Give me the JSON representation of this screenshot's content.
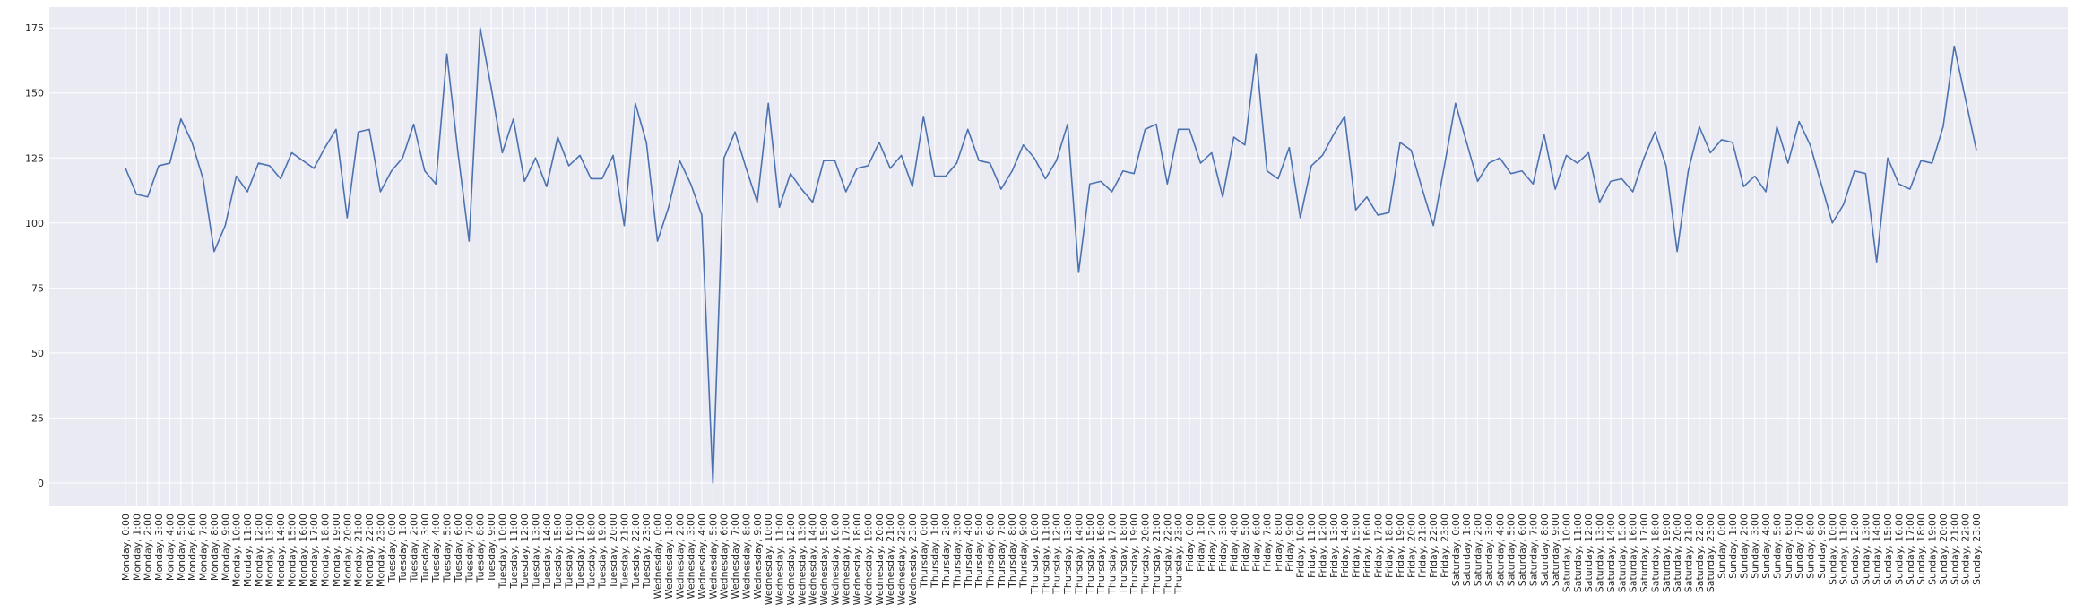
{
  "chart_data": {
    "type": "line",
    "title": "",
    "xlabel": "",
    "ylabel": "",
    "ylim": [
      -9,
      183
    ],
    "grid": true,
    "legend": "none",
    "background_color": "#eaeaf2",
    "grid_color": "#ffffff",
    "yticks": [
      0,
      25,
      50,
      75,
      100,
      125,
      150,
      175
    ],
    "series": [
      {
        "color": "#4c72b0",
        "values": [
          121,
          111,
          110,
          122,
          123,
          140,
          131,
          117,
          89,
          99,
          118,
          112,
          123,
          122,
          117,
          127,
          124,
          121,
          129,
          136,
          102,
          135,
          136,
          112,
          120,
          125,
          138,
          120,
          115,
          165,
          127,
          93,
          175,
          152,
          127,
          140,
          116,
          125,
          114,
          133,
          122,
          126,
          117,
          117,
          126,
          99,
          146,
          131,
          93,
          106,
          124,
          115,
          103,
          0,
          125,
          135,
          121,
          108,
          146,
          106,
          119,
          113,
          108,
          124,
          124,
          112,
          121,
          122,
          131,
          121,
          126,
          114,
          141,
          118,
          118,
          123,
          136,
          124,
          123,
          113,
          120,
          130,
          125,
          117,
          124,
          138,
          81,
          115,
          116,
          112,
          120,
          119,
          136,
          138,
          115,
          136,
          136,
          123,
          127,
          110,
          133,
          130,
          165,
          120,
          117,
          129,
          102,
          122,
          126,
          134,
          141,
          105,
          110,
          103,
          104,
          131,
          128,
          113,
          99,
          122,
          146,
          131,
          116,
          123,
          125,
          119,
          120,
          115,
          134,
          113,
          126,
          123,
          127,
          108,
          116,
          117,
          112,
          125,
          135,
          122,
          89,
          120,
          137,
          127,
          132,
          131,
          114,
          118,
          112,
          137,
          123,
          139,
          130,
          115,
          100,
          107,
          120,
          119,
          85,
          125,
          115,
          113,
          124,
          123,
          137,
          168,
          148,
          128
        ]
      }
    ],
    "x": [
      "Monday, 0:00",
      "Monday, 1:00",
      "Monday, 2:00",
      "Monday, 3:00",
      "Monday, 4:00",
      "Monday, 5:00",
      "Monday, 6:00",
      "Monday, 7:00",
      "Monday, 8:00",
      "Monday, 9:00",
      "Monday, 10:00",
      "Monday, 11:00",
      "Monday, 12:00",
      "Monday, 13:00",
      "Monday, 14:00",
      "Monday, 15:00",
      "Monday, 16:00",
      "Monday, 17:00",
      "Monday, 18:00",
      "Monday, 19:00",
      "Monday, 20:00",
      "Monday, 21:00",
      "Monday, 22:00",
      "Monday, 23:00",
      "Tuesday, 0:00",
      "Tuesday, 1:00",
      "Tuesday, 2:00",
      "Tuesday, 3:00",
      "Tuesday, 4:00",
      "Tuesday, 5:00",
      "Tuesday, 6:00",
      "Tuesday, 7:00",
      "Tuesday, 8:00",
      "Tuesday, 9:00",
      "Tuesday, 10:00",
      "Tuesday, 11:00",
      "Tuesday, 12:00",
      "Tuesday, 13:00",
      "Tuesday, 14:00",
      "Tuesday, 15:00",
      "Tuesday, 16:00",
      "Tuesday, 17:00",
      "Tuesday, 18:00",
      "Tuesday, 19:00",
      "Tuesday, 20:00",
      "Tuesday, 21:00",
      "Tuesday, 22:00",
      "Tuesday, 23:00",
      "Wednesday, 0:00",
      "Wednesday, 1:00",
      "Wednesday, 2:00",
      "Wednesday, 3:00",
      "Wednesday, 4:00",
      "Wednesday, 5:00",
      "Wednesday, 6:00",
      "Wednesday, 7:00",
      "Wednesday, 8:00",
      "Wednesday, 9:00",
      "Wednesday, 10:00",
      "Wednesday, 11:00",
      "Wednesday, 12:00",
      "Wednesday, 13:00",
      "Wednesday, 14:00",
      "Wednesday, 15:00",
      "Wednesday, 16:00",
      "Wednesday, 17:00",
      "Wednesday, 18:00",
      "Wednesday, 19:00",
      "Wednesday, 20:00",
      "Wednesday, 21:00",
      "Wednesday, 22:00",
      "Wednesday, 23:00",
      "Thursday, 0:00",
      "Thursday, 1:00",
      "Thursday, 2:00",
      "Thursday, 3:00",
      "Thursday, 4:00",
      "Thursday, 5:00",
      "Thursday, 6:00",
      "Thursday, 7:00",
      "Thursday, 8:00",
      "Thursday, 9:00",
      "Thursday, 10:00",
      "Thursday, 11:00",
      "Thursday, 12:00",
      "Thursday, 13:00",
      "Thursday, 14:00",
      "Thursday, 15:00",
      "Thursday, 16:00",
      "Thursday, 17:00",
      "Thursday, 18:00",
      "Thursday, 19:00",
      "Thursday, 20:00",
      "Thursday, 21:00",
      "Thursday, 22:00",
      "Thursday, 23:00",
      "Friday, 0:00",
      "Friday, 1:00",
      "Friday, 2:00",
      "Friday, 3:00",
      "Friday, 4:00",
      "Friday, 5:00",
      "Friday, 6:00",
      "Friday, 7:00",
      "Friday, 8:00",
      "Friday, 9:00",
      "Friday, 10:00",
      "Friday, 11:00",
      "Friday, 12:00",
      "Friday, 13:00",
      "Friday, 14:00",
      "Friday, 15:00",
      "Friday, 16:00",
      "Friday, 17:00",
      "Friday, 18:00",
      "Friday, 19:00",
      "Friday, 20:00",
      "Friday, 21:00",
      "Friday, 22:00",
      "Friday, 23:00",
      "Saturday, 0:00",
      "Saturday, 1:00",
      "Saturday, 2:00",
      "Saturday, 3:00",
      "Saturday, 4:00",
      "Saturday, 5:00",
      "Saturday, 6:00",
      "Saturday, 7:00",
      "Saturday, 8:00",
      "Saturday, 9:00",
      "Saturday, 10:00",
      "Saturday, 11:00",
      "Saturday, 12:00",
      "Saturday, 13:00",
      "Saturday, 14:00",
      "Saturday, 15:00",
      "Saturday, 16:00",
      "Saturday, 17:00",
      "Saturday, 18:00",
      "Saturday, 19:00",
      "Saturday, 20:00",
      "Saturday, 21:00",
      "Saturday, 22:00",
      "Saturday, 23:00",
      "Sunday, 0:00",
      "Sunday, 1:00",
      "Sunday, 2:00",
      "Sunday, 3:00",
      "Sunday, 4:00",
      "Sunday, 5:00",
      "Sunday, 6:00",
      "Sunday, 7:00",
      "Sunday, 8:00",
      "Sunday, 9:00",
      "Sunday, 10:00",
      "Sunday, 11:00",
      "Sunday, 12:00",
      "Sunday, 13:00",
      "Sunday, 14:00",
      "Sunday, 15:00",
      "Sunday, 16:00",
      "Sunday, 17:00",
      "Sunday, 18:00",
      "Sunday, 19:00",
      "Sunday, 20:00",
      "Sunday, 21:00",
      "Sunday, 22:00",
      "Sunday, 23:00"
    ]
  }
}
